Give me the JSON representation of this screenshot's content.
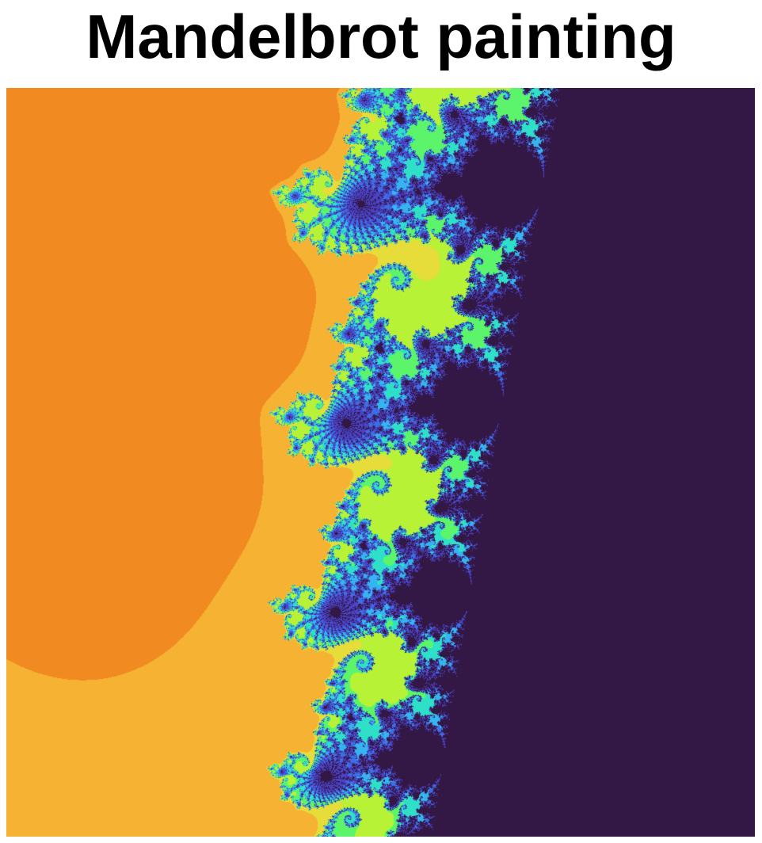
{
  "title": "Mandelbrot painting",
  "fractal": {
    "set": "mandelbrot",
    "colormap": "turbo-like (orange/yellow/green/cyan/blue)",
    "interior_color": "#331744",
    "palette": {
      "dark_red": "#9a1a02",
      "red_orange": "#cc2d05",
      "orange": "#e8591a",
      "light_orange": "#f28a22",
      "amber": "#f5b233",
      "yellow": "#e6dc3a",
      "yellow_green": "#b8f236",
      "green": "#5cf46a",
      "cyan": "#2fe0c8",
      "light_blue": "#35b4f0",
      "blue": "#3e6ee6",
      "indigo": "#4a44c8",
      "interior": "#331744"
    }
  }
}
